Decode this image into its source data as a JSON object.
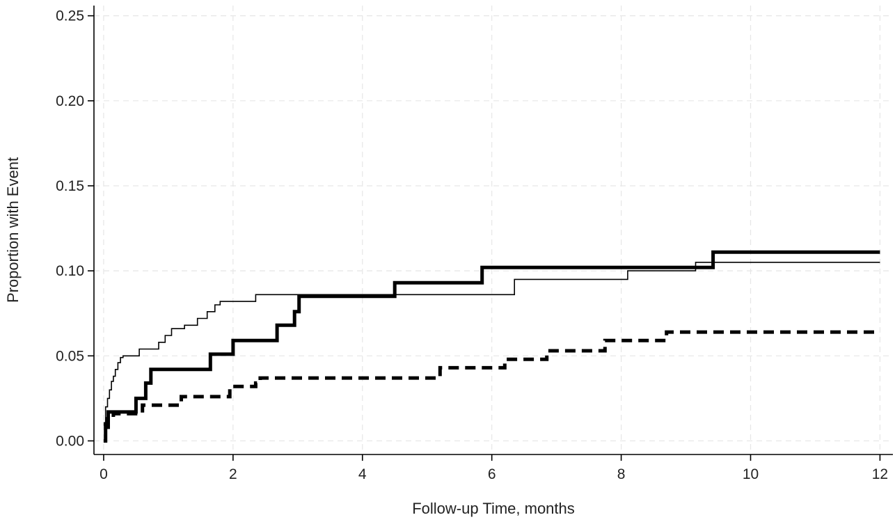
{
  "chart_data": {
    "type": "line",
    "title": "",
    "xlabel": "Follow-up Time, months",
    "ylabel": "Proportion with Event",
    "xlim": [
      -0.15,
      12.2
    ],
    "ylim": [
      -0.008,
      0.256
    ],
    "x_ticks": [
      0,
      2,
      4,
      6,
      8,
      10,
      12
    ],
    "x_tick_labels": [
      "0",
      "2",
      "4",
      "6",
      "8",
      "10",
      "12"
    ],
    "y_ticks": [
      0.0,
      0.05,
      0.1,
      0.15,
      0.2,
      0.25
    ],
    "y_tick_labels": [
      "0.00",
      "0.05",
      "0.10",
      "0.15",
      "0.20",
      "0.25"
    ],
    "grid": true,
    "legend": "none",
    "step": true,
    "series": [
      {
        "style": "thin-solid",
        "color": "#222222",
        "x": [
          0,
          0.03,
          0.06,
          0.09,
          0.12,
          0.15,
          0.18,
          0.22,
          0.26,
          0.3,
          0.55,
          0.85,
          0.95,
          1.05,
          1.25,
          1.45,
          1.6,
          1.72,
          1.8,
          2.35,
          3.0,
          5.8,
          6.35,
          8.1,
          9.15,
          12.0
        ],
        "y": [
          0.0,
          0.02,
          0.025,
          0.03,
          0.035,
          0.038,
          0.042,
          0.046,
          0.049,
          0.05,
          0.054,
          0.058,
          0.062,
          0.066,
          0.068,
          0.072,
          0.076,
          0.08,
          0.082,
          0.086,
          0.086,
          0.086,
          0.095,
          0.1,
          0.105,
          0.105
        ]
      },
      {
        "style": "thick-solid",
        "color": "#000000",
        "x": [
          0,
          0.03,
          0.07,
          0.5,
          0.65,
          0.73,
          1.65,
          2.0,
          2.68,
          2.95,
          3.02,
          4.5,
          5.85,
          9.42,
          12.0
        ],
        "y": [
          0.0,
          0.008,
          0.017,
          0.025,
          0.034,
          0.042,
          0.051,
          0.059,
          0.068,
          0.076,
          0.085,
          0.093,
          0.102,
          0.111,
          0.111
        ]
      },
      {
        "style": "thick-dashed",
        "color": "#000000",
        "x": [
          0,
          0.06,
          0.15,
          0.6,
          1.2,
          1.95,
          2.35,
          2.42,
          5.2,
          6.2,
          6.85,
          7.75,
          8.7,
          12.0
        ],
        "y": [
          0.01,
          0.013,
          0.016,
          0.021,
          0.026,
          0.032,
          0.034,
          0.037,
          0.043,
          0.048,
          0.053,
          0.059,
          0.064,
          0.064
        ]
      }
    ]
  }
}
